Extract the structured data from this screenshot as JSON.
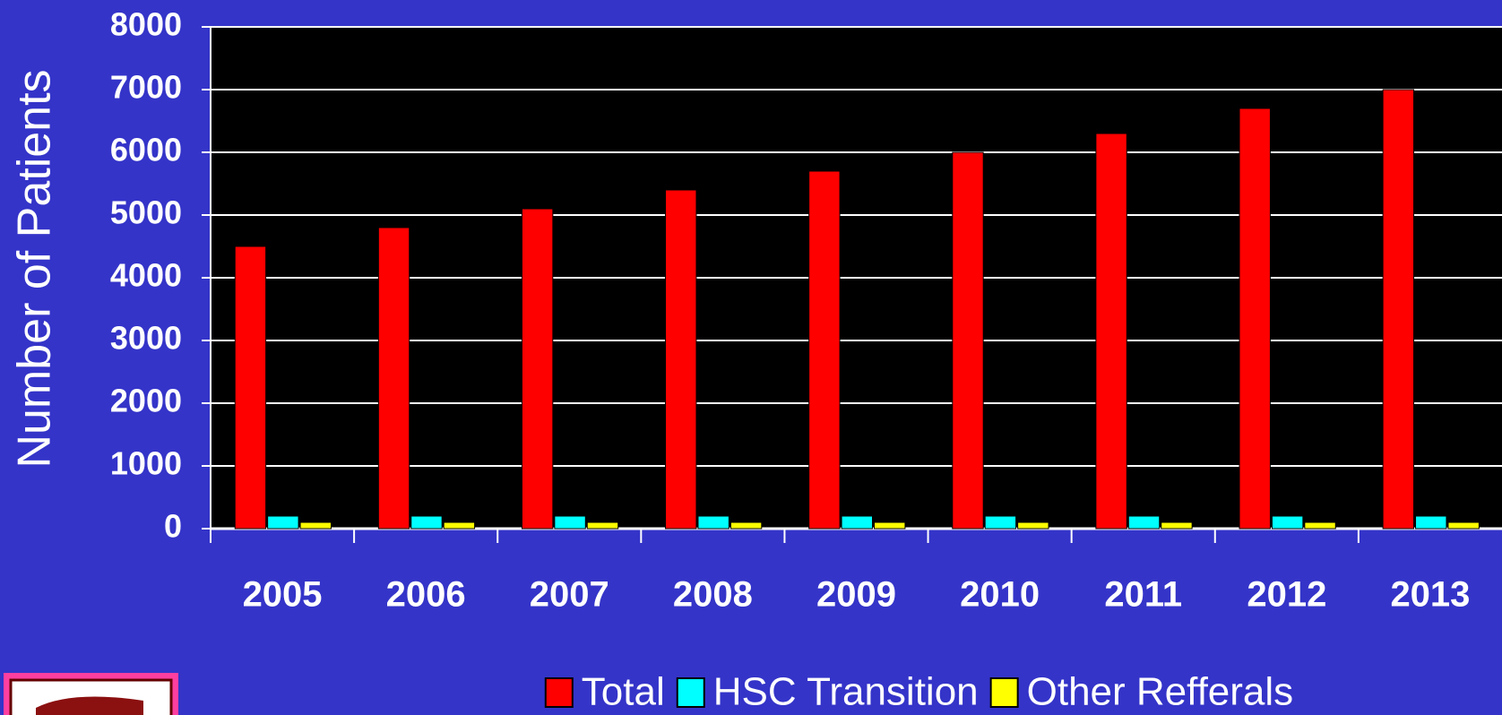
{
  "chart_data": {
    "type": "bar",
    "y_label": "Number of Patients",
    "categories": [
      "2005",
      "2006",
      "2007",
      "2008",
      "2009",
      "2010",
      "2011",
      "2012",
      "2013"
    ],
    "series": [
      {
        "name": "Total",
        "color": "#ff0000",
        "values": [
          4500,
          4800,
          5100,
          5400,
          5700,
          6000,
          6300,
          6700,
          7000
        ]
      },
      {
        "name": "HSC Transition",
        "color": "#00ffff",
        "values": [
          200,
          200,
          200,
          200,
          200,
          200,
          200,
          200,
          200
        ]
      },
      {
        "name": "Other Refferals",
        "color": "#ffff00",
        "values": [
          100,
          100,
          100,
          100,
          100,
          100,
          100,
          100,
          100
        ]
      }
    ],
    "ylim": [
      0,
      8000
    ],
    "yticks": [
      0,
      1000,
      2000,
      3000,
      4000,
      5000,
      6000,
      7000,
      8000
    ],
    "grid": true,
    "legend": "bottom"
  }
}
